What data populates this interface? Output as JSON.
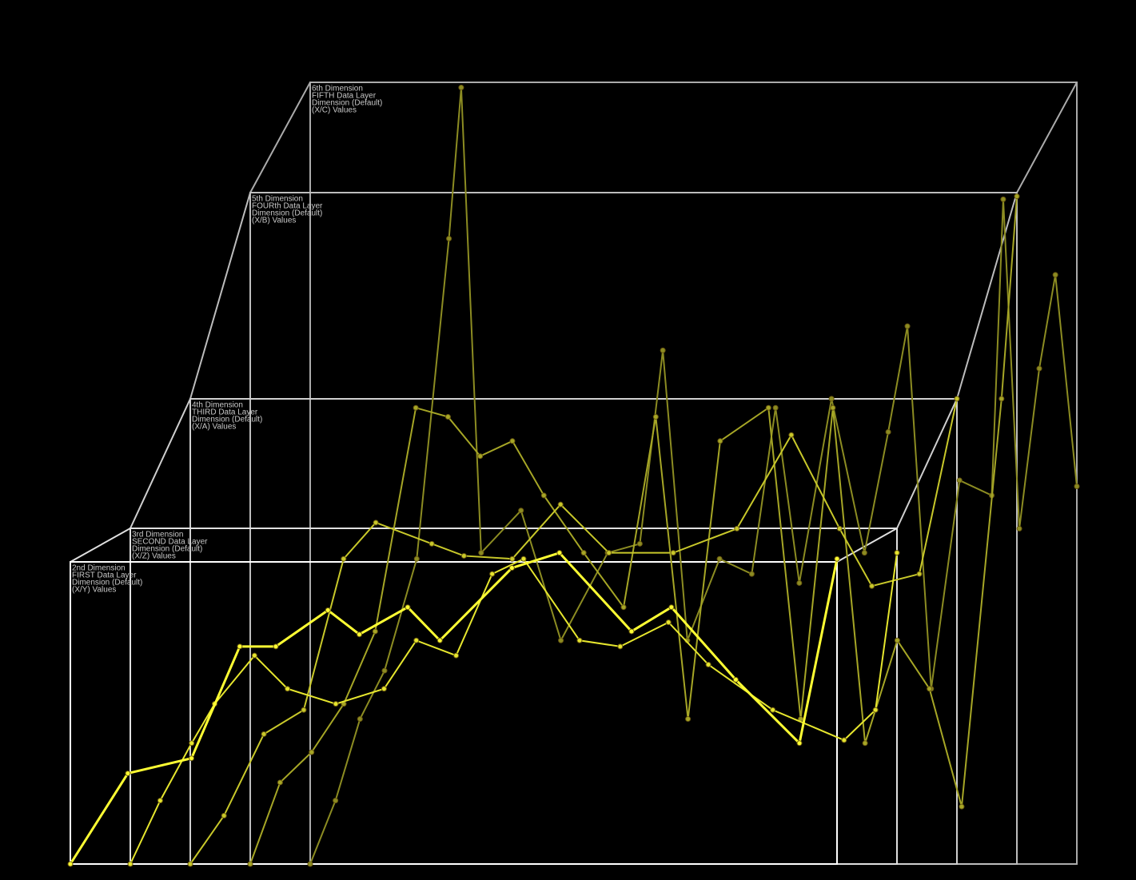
{
  "chart_data": {
    "type": "line",
    "series": [
      {
        "label": [
          "2nd Dimension",
          "FIRST Data Layer",
          "Dimension (Default)",
          "(X/Y) Values"
        ],
        "color": "#ffff33",
        "x": [
          0,
          7.5,
          15.8,
          22.1,
          26.8,
          33.6,
          37.7,
          44,
          48.2,
          57.6,
          63.8,
          73.2,
          78.4,
          86.8,
          95.1,
          100
        ],
        "y": [
          0,
          30,
          35,
          72,
          72,
          84,
          76,
          85,
          74,
          98,
          103,
          77,
          85,
          61,
          40,
          101
        ]
      },
      {
        "label": [
          "3rd Dimension",
          "SECOND Data Layer",
          "Dimension (Default)",
          "(X/Z) Values"
        ],
        "color": "#e6e62e",
        "x": [
          0,
          3.9,
          8,
          11,
          16.2,
          20.5,
          26.8,
          33.1,
          37.3,
          42.5,
          47.2,
          51.3,
          58.6,
          63.9,
          70.2,
          75.4,
          83.8,
          93.1,
          97.2,
          100
        ],
        "y": [
          0,
          21,
          40,
          53,
          69,
          58,
          53,
          58,
          74,
          69,
          96,
          101,
          74,
          72,
          80,
          66,
          51,
          41,
          51,
          103
        ]
      },
      {
        "label": [
          "4th Dimension",
          "THIRD Data Layer",
          "Dimension (Default)",
          "(X/A) Values"
        ],
        "color": "#c8c82a",
        "x": [
          0,
          4.4,
          9.6,
          14.8,
          20,
          24.2,
          31.5,
          35.7,
          42,
          48.3,
          54.6,
          63,
          71.3,
          78.4,
          84.7,
          88.9,
          95.1,
          100
        ],
        "y": [
          0,
          16,
          43,
          51,
          101,
          113,
          106,
          102,
          101,
          119,
          103,
          103,
          111,
          142,
          111,
          92,
          96,
          154
        ]
      },
      {
        "label": [
          "5th Dimension",
          "FOURth Data Layer",
          "Dimension (Default)",
          "(X/B) Values"
        ],
        "color": "#a6a626",
        "x": [
          0,
          3.9,
          8,
          12.2,
          16.3,
          21.6,
          25.8,
          30,
          34.2,
          38.3,
          43.5,
          48.7,
          52.9,
          57.1,
          61.3,
          67.6,
          71.8,
          76,
          80.2,
          84.4,
          88.6,
          92.8,
          98,
          100
        ],
        "y": [
          0,
          27,
          37,
          53,
          77,
          151,
          148,
          135,
          140,
          122,
          103,
          85,
          148,
          48,
          140,
          151,
          48,
          151,
          40,
          74,
          58,
          19,
          154,
          221
        ]
      },
      {
        "label": [
          "6th Dimension",
          "FIFTH Data Layer",
          "Dimension (Default)",
          "(X/C) Values"
        ],
        "color": "#8c8c22",
        "x": [
          0,
          3.3,
          6.5,
          9.7,
          13.9,
          18.1,
          19.7,
          22.3,
          27.5,
          32.7,
          38.8,
          43,
          46,
          49.2,
          53.4,
          57.6,
          60.7,
          63.8,
          68,
          72.3,
          75.4,
          77.9,
          81,
          84.7,
          88.9,
          90.4,
          92.5,
          95.1,
          97.2,
          100
        ],
        "y": [
          0,
          21,
          48,
          64,
          101,
          207,
          257,
          103,
          117,
          74,
          103,
          106,
          170,
          74,
          101,
          96,
          151,
          93,
          154,
          103,
          143,
          178,
          58,
          127,
          122,
          220,
          111,
          164,
          195,
          125
        ]
      }
    ]
  }
}
